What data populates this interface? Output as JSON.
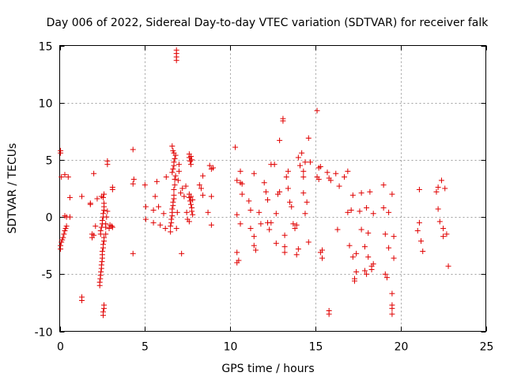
{
  "chart_data": {
    "type": "scatter",
    "title": "Day 006 of 2022, Sidereal Day-to-day VTEC variation (SDTVAR) for receiver falk",
    "xlabel": "GPS time / hours",
    "ylabel": "SDTVAR / TECUs",
    "xlim": [
      0,
      25
    ],
    "ylim": [
      -10,
      15
    ],
    "xticks": [
      0,
      5,
      10,
      15,
      20,
      25
    ],
    "xtick_labels": [
      "0",
      "5",
      "10",
      "15",
      "20",
      "25"
    ],
    "yticks": [
      -10,
      -5,
      0,
      5,
      10,
      15
    ],
    "ytick_labels": [
      "-10",
      "-5",
      "0",
      "5",
      "10",
      "15"
    ],
    "grid": true,
    "marker": "plus",
    "color": "#e00000",
    "series": [
      {
        "name": "SDTVAR",
        "points": [
          [
            0.05,
            -2.8
          ],
          [
            0.05,
            -2.5
          ],
          [
            0.1,
            -2.2
          ],
          [
            0.15,
            -2.0
          ],
          [
            0.2,
            -1.8
          ],
          [
            0.25,
            -1.5
          ],
          [
            0.3,
            -1.2
          ],
          [
            0.35,
            -1.0
          ],
          [
            0.4,
            -0.8
          ],
          [
            0.05,
            5.8
          ],
          [
            0.05,
            5.6
          ],
          [
            0.1,
            3.5
          ],
          [
            0.3,
            3.7
          ],
          [
            0.5,
            3.5
          ],
          [
            0.3,
            0.1
          ],
          [
            0.4,
            0.0
          ],
          [
            0.6,
            0.0
          ],
          [
            0.6,
            1.7
          ],
          [
            1.3,
            -7.0
          ],
          [
            1.3,
            -7.3
          ],
          [
            1.3,
            1.8
          ],
          [
            1.8,
            1.2
          ],
          [
            1.8,
            1.1
          ],
          [
            1.9,
            -1.5
          ],
          [
            1.9,
            -1.8
          ],
          [
            2.0,
            -1.6
          ],
          [
            2.1,
            -0.8
          ],
          [
            2.2,
            1.6
          ],
          [
            2.0,
            3.8
          ],
          [
            2.35,
            -6.0
          ],
          [
            2.35,
            -5.7
          ],
          [
            2.38,
            -5.4
          ],
          [
            2.4,
            -5.1
          ],
          [
            2.42,
            -4.8
          ],
          [
            2.45,
            -4.5
          ],
          [
            2.45,
            -4.2
          ],
          [
            2.48,
            -3.9
          ],
          [
            2.5,
            -3.6
          ],
          [
            2.5,
            -3.3
          ],
          [
            2.5,
            -3.0
          ],
          [
            2.55,
            -8.3
          ],
          [
            2.55,
            -8.6
          ],
          [
            2.6,
            -8.0
          ],
          [
            2.6,
            -7.7
          ],
          [
            2.55,
            -2.7
          ],
          [
            2.55,
            -2.4
          ],
          [
            2.6,
            -2.1
          ],
          [
            2.6,
            -1.8
          ],
          [
            2.4,
            -1.5
          ],
          [
            2.4,
            -1.2
          ],
          [
            2.45,
            -0.9
          ],
          [
            2.5,
            -0.6
          ],
          [
            2.5,
            -0.3
          ],
          [
            2.55,
            0.0
          ],
          [
            2.55,
            0.3
          ],
          [
            2.6,
            0.6
          ],
          [
            2.6,
            0.9
          ],
          [
            2.6,
            1.2
          ],
          [
            2.55,
            1.7
          ],
          [
            2.6,
            2.0
          ],
          [
            2.45,
            1.8
          ],
          [
            2.7,
            -1.5
          ],
          [
            2.7,
            -0.9
          ],
          [
            2.7,
            -0.6
          ],
          [
            2.75,
            0.0
          ],
          [
            2.8,
            0.5
          ],
          [
            2.9,
            -1.0
          ],
          [
            2.95,
            -0.7
          ],
          [
            3.05,
            -0.8
          ],
          [
            3.1,
            -0.9
          ],
          [
            2.8,
            4.6
          ],
          [
            2.8,
            4.9
          ],
          [
            3.1,
            2.4
          ],
          [
            3.1,
            2.6
          ],
          [
            4.3,
            5.9
          ],
          [
            4.3,
            2.9
          ],
          [
            4.35,
            3.3
          ],
          [
            4.3,
            -3.2
          ],
          [
            5.0,
            2.8
          ],
          [
            5.05,
            0.9
          ],
          [
            5.05,
            -0.2
          ],
          [
            5.5,
            -0.5
          ],
          [
            5.5,
            0.6
          ],
          [
            5.6,
            1.8
          ],
          [
            5.7,
            3.1
          ],
          [
            5.8,
            0.9
          ],
          [
            5.9,
            -0.7
          ],
          [
            6.1,
            0.3
          ],
          [
            6.2,
            -1.0
          ],
          [
            6.25,
            3.5
          ],
          [
            6.5,
            -1.3
          ],
          [
            6.5,
            -0.8
          ],
          [
            6.55,
            -0.5
          ],
          [
            6.55,
            -0.2
          ],
          [
            6.6,
            0.1
          ],
          [
            6.6,
            0.4
          ],
          [
            6.6,
            0.7
          ],
          [
            6.65,
            1.0
          ],
          [
            6.65,
            1.3
          ],
          [
            6.7,
            1.6
          ],
          [
            6.7,
            1.9
          ],
          [
            6.7,
            2.4
          ],
          [
            6.75,
            2.8
          ],
          [
            6.75,
            3.3
          ],
          [
            6.8,
            3.6
          ],
          [
            6.6,
            3.9
          ],
          [
            6.65,
            4.2
          ],
          [
            6.7,
            4.5
          ],
          [
            6.7,
            4.8
          ],
          [
            6.75,
            5.1
          ],
          [
            6.8,
            5.4
          ],
          [
            6.6,
            6.2
          ],
          [
            6.65,
            5.8
          ],
          [
            6.7,
            5.6
          ],
          [
            6.85,
            13.7
          ],
          [
            6.85,
            14.0
          ],
          [
            6.85,
            14.3
          ],
          [
            6.85,
            14.6
          ],
          [
            6.85,
            -1.0
          ],
          [
            6.9,
            0.4
          ],
          [
            6.95,
            3.2
          ],
          [
            7.0,
            4.0
          ],
          [
            7.0,
            4.6
          ],
          [
            7.1,
            2.1
          ],
          [
            7.15,
            -3.2
          ],
          [
            7.2,
            2.5
          ],
          [
            7.3,
            1.8
          ],
          [
            7.4,
            2.7
          ],
          [
            7.45,
            0.4
          ],
          [
            7.5,
            -0.2
          ],
          [
            7.6,
            5.5
          ],
          [
            7.6,
            5.2
          ],
          [
            7.65,
            4.9
          ],
          [
            7.7,
            4.6
          ],
          [
            7.7,
            5.3
          ],
          [
            7.75,
            5.0
          ],
          [
            7.6,
            2.0
          ],
          [
            7.6,
            1.7
          ],
          [
            7.65,
            1.4
          ],
          [
            7.7,
            1.1
          ],
          [
            7.75,
            0.8
          ],
          [
            7.75,
            0.5
          ],
          [
            7.8,
            0.2
          ],
          [
            7.6,
            -0.4
          ],
          [
            7.7,
            1.8
          ],
          [
            7.8,
            1.5
          ],
          [
            8.2,
            2.8
          ],
          [
            8.3,
            2.5
          ],
          [
            8.4,
            3.6
          ],
          [
            8.4,
            1.9
          ],
          [
            8.7,
            0.4
          ],
          [
            8.8,
            4.5
          ],
          [
            8.9,
            -0.7
          ],
          [
            8.9,
            1.8
          ],
          [
            8.9,
            4.2
          ],
          [
            9.0,
            4.3
          ],
          [
            10.3,
            6.1
          ],
          [
            10.4,
            3.2
          ],
          [
            10.4,
            0.2
          ],
          [
            10.4,
            -3.1
          ],
          [
            10.4,
            -4.0
          ],
          [
            10.5,
            -3.8
          ],
          [
            10.6,
            3.0
          ],
          [
            10.6,
            4.0
          ],
          [
            10.6,
            -0.6
          ],
          [
            10.7,
            2.0
          ],
          [
            10.7,
            2.9
          ],
          [
            11.1,
            1.4
          ],
          [
            11.2,
            0.6
          ],
          [
            11.2,
            -1.0
          ],
          [
            11.4,
            -2.5
          ],
          [
            11.5,
            -2.9
          ],
          [
            11.4,
            -1.7
          ],
          [
            11.4,
            3.8
          ],
          [
            11.7,
            0.4
          ],
          [
            11.8,
            -0.6
          ],
          [
            12.0,
            3.0
          ],
          [
            12.1,
            2.2
          ],
          [
            12.2,
            1.5
          ],
          [
            12.2,
            -0.5
          ],
          [
            12.3,
            -1.1
          ],
          [
            12.4,
            -0.5
          ],
          [
            12.4,
            4.6
          ],
          [
            12.6,
            4.6
          ],
          [
            12.7,
            0.3
          ],
          [
            12.7,
            -2.3
          ],
          [
            12.8,
            2.0
          ],
          [
            12.9,
            2.2
          ],
          [
            12.9,
            6.7
          ],
          [
            13.1,
            8.4
          ],
          [
            13.1,
            8.6
          ],
          [
            13.2,
            -1.6
          ],
          [
            13.2,
            -3.1
          ],
          [
            13.2,
            -2.6
          ],
          [
            13.3,
            3.5
          ],
          [
            13.4,
            4.0
          ],
          [
            13.4,
            2.5
          ],
          [
            13.5,
            1.3
          ],
          [
            13.6,
            0.9
          ],
          [
            13.7,
            -0.6
          ],
          [
            13.8,
            -1.0
          ],
          [
            13.9,
            -0.7
          ],
          [
            13.9,
            -3.3
          ],
          [
            14.0,
            -2.8
          ],
          [
            14.0,
            5.2
          ],
          [
            14.1,
            4.5
          ],
          [
            14.2,
            5.6
          ],
          [
            14.3,
            4.0
          ],
          [
            14.3,
            3.5
          ],
          [
            14.3,
            2.1
          ],
          [
            14.4,
            4.8
          ],
          [
            14.4,
            0.3
          ],
          [
            14.5,
            1.3
          ],
          [
            14.6,
            6.9
          ],
          [
            14.6,
            -2.2
          ],
          [
            14.7,
            4.8
          ],
          [
            15.1,
            9.3
          ],
          [
            15.1,
            3.5
          ],
          [
            15.2,
            4.3
          ],
          [
            15.2,
            3.3
          ],
          [
            15.3,
            -3.1
          ],
          [
            15.3,
            4.4
          ],
          [
            15.4,
            -2.9
          ],
          [
            15.4,
            -3.6
          ],
          [
            15.7,
            3.9
          ],
          [
            15.8,
            -8.2
          ],
          [
            15.8,
            -8.5
          ],
          [
            15.8,
            3.4
          ],
          [
            15.9,
            3.2
          ],
          [
            16.2,
            3.8
          ],
          [
            16.3,
            -1.1
          ],
          [
            16.4,
            2.7
          ],
          [
            16.7,
            3.5
          ],
          [
            16.9,
            4.0
          ],
          [
            16.9,
            0.4
          ],
          [
            17.0,
            -2.5
          ],
          [
            17.1,
            0.6
          ],
          [
            17.2,
            1.9
          ],
          [
            17.2,
            -3.5
          ],
          [
            17.3,
            -5.4
          ],
          [
            17.3,
            -5.6
          ],
          [
            17.4,
            -4.8
          ],
          [
            17.4,
            -3.2
          ],
          [
            17.6,
            0.5
          ],
          [
            17.7,
            2.1
          ],
          [
            17.7,
            -1.1
          ],
          [
            17.9,
            -2.6
          ],
          [
            17.9,
            -4.7
          ],
          [
            18.0,
            -5.0
          ],
          [
            18.0,
            0.8
          ],
          [
            18.1,
            -3.5
          ],
          [
            18.1,
            -1.4
          ],
          [
            18.2,
            2.2
          ],
          [
            18.3,
            -4.3
          ],
          [
            18.3,
            -4.6
          ],
          [
            18.4,
            -4.1
          ],
          [
            18.4,
            0.3
          ],
          [
            19.0,
            2.8
          ],
          [
            19.0,
            0.8
          ],
          [
            19.1,
            -1.5
          ],
          [
            19.1,
            -5.0
          ],
          [
            19.2,
            -5.3
          ],
          [
            19.3,
            -2.7
          ],
          [
            19.3,
            0.4
          ],
          [
            19.5,
            2.0
          ],
          [
            19.6,
            -1.7
          ],
          [
            19.5,
            -6.7
          ],
          [
            19.5,
            -7.7
          ],
          [
            19.5,
            -8.0
          ],
          [
            19.5,
            -8.5
          ],
          [
            19.6,
            -3.6
          ],
          [
            21.0,
            -1.2
          ],
          [
            21.1,
            2.4
          ],
          [
            21.1,
            -0.5
          ],
          [
            21.2,
            -2.1
          ],
          [
            21.3,
            -3.0
          ],
          [
            22.1,
            2.2
          ],
          [
            22.2,
            2.6
          ],
          [
            22.2,
            0.7
          ],
          [
            22.3,
            -0.4
          ],
          [
            22.4,
            3.2
          ],
          [
            22.5,
            -1.0
          ],
          [
            22.5,
            -1.7
          ],
          [
            22.6,
            2.5
          ],
          [
            22.7,
            -1.5
          ],
          [
            22.8,
            -4.3
          ]
        ]
      }
    ]
  }
}
